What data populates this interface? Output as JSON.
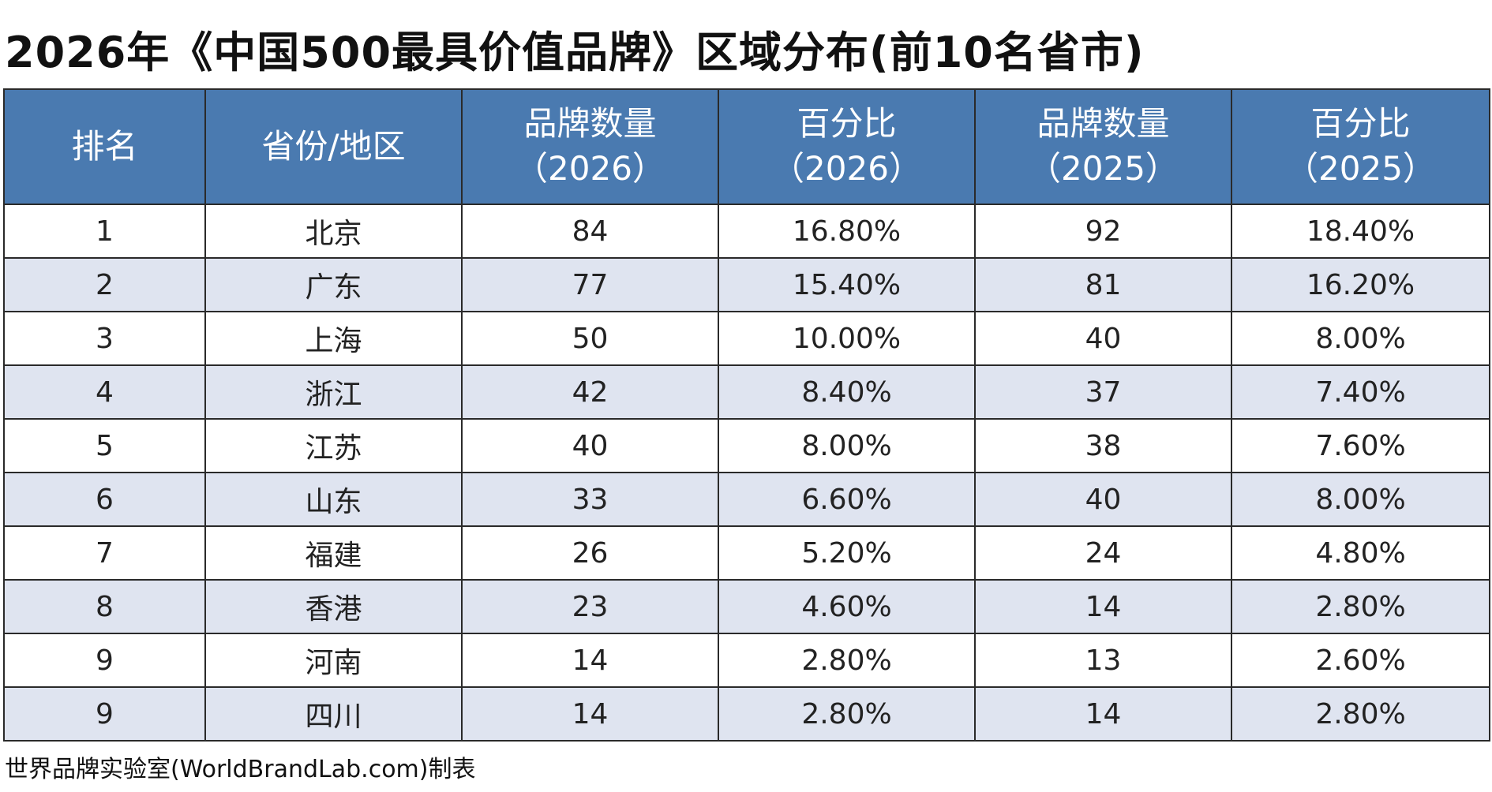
{
  "title": "2026年《中国500最具价值品牌》区域分布(前10名省市)",
  "table": {
    "headers": [
      {
        "line1": "排名",
        "line2": ""
      },
      {
        "line1": "省份/地区",
        "line2": ""
      },
      {
        "line1": "品牌数量",
        "line2": "（2026）"
      },
      {
        "line1": "百分比",
        "line2": "（2026）"
      },
      {
        "line1": "品牌数量",
        "line2": "（2025）"
      },
      {
        "line1": "百分比",
        "line2": "（2025）"
      }
    ],
    "rows": [
      [
        "1",
        "北京",
        "84",
        "16.80%",
        "92",
        "18.40%"
      ],
      [
        "2",
        "广东",
        "77",
        "15.40%",
        "81",
        "16.20%"
      ],
      [
        "3",
        "上海",
        "50",
        "10.00%",
        "40",
        "8.00%"
      ],
      [
        "4",
        "浙江",
        "42",
        "8.40%",
        "37",
        "7.40%"
      ],
      [
        "5",
        "江苏",
        "40",
        "8.00%",
        "38",
        "7.60%"
      ],
      [
        "6",
        "山东",
        "33",
        "6.60%",
        "40",
        "8.00%"
      ],
      [
        "7",
        "福建",
        "26",
        "5.20%",
        "24",
        "4.80%"
      ],
      [
        "8",
        "香港",
        "23",
        "4.60%",
        "14",
        "2.80%"
      ],
      [
        "9",
        "河南",
        "14",
        "2.80%",
        "13",
        "2.60%"
      ],
      [
        "9",
        "四川",
        "14",
        "2.80%",
        "14",
        "2.80%"
      ]
    ]
  },
  "footer": "世界品牌实验室(WorldBrandLab.com)制表",
  "colors": {
    "header_bg": "#4a7ab0",
    "row_alt_bg": "#dfe4f0",
    "border": "#2a2a2a"
  }
}
